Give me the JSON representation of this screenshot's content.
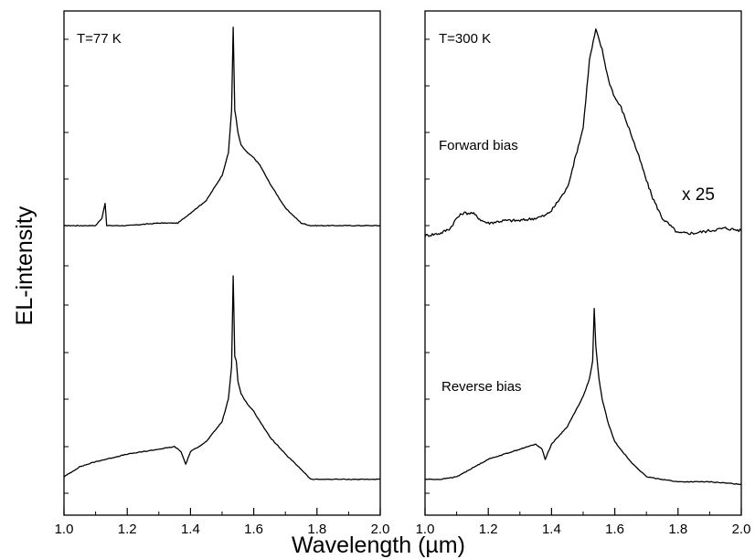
{
  "chart_data": {
    "type": "line",
    "xlabel": "Wavelength (µm)",
    "ylabel": "EL-intensity",
    "xlim": [
      1.0,
      2.0
    ],
    "x_ticks": [
      "1.0",
      "1.2",
      "1.4",
      "1.6",
      "1.8",
      "2.0"
    ],
    "grid": false,
    "panels": [
      {
        "label": "T=77 K",
        "annotations": [],
        "series": [
          {
            "name": "",
            "x": [
              1.0,
              1.05,
              1.1,
              1.12,
              1.13,
              1.135,
              1.15,
              1.2,
              1.3,
              1.36,
              1.38,
              1.4,
              1.45,
              1.5,
              1.52,
              1.53,
              1.535,
              1.54,
              1.545,
              1.55,
              1.56,
              1.58,
              1.6,
              1.62,
              1.65,
              1.7,
              1.75,
              1.78,
              1.85,
              1.9,
              2.0
            ],
            "y": [
              0.16,
              0.16,
              0.16,
              0.19,
              0.25,
              0.16,
              0.16,
              0.16,
              0.17,
              0.17,
              0.19,
              0.21,
              0.26,
              0.36,
              0.45,
              0.62,
              0.95,
              0.62,
              0.58,
              0.53,
              0.48,
              0.45,
              0.43,
              0.4,
              0.33,
              0.23,
              0.17,
              0.16,
              0.16,
              0.16,
              0.16
            ]
          },
          {
            "name": "",
            "x": [
              1.0,
              1.05,
              1.1,
              1.2,
              1.3,
              1.35,
              1.37,
              1.385,
              1.4,
              1.45,
              1.5,
              1.52,
              1.53,
              1.535,
              1.54,
              1.545,
              1.55,
              1.56,
              1.58,
              1.6,
              1.62,
              1.65,
              1.7,
              1.75,
              1.78,
              1.85,
              1.9,
              2.0
            ],
            "y": [
              -0.84,
              -0.8,
              -0.78,
              -0.75,
              -0.73,
              -0.72,
              -0.74,
              -0.79,
              -0.74,
              -0.7,
              -0.62,
              -0.53,
              -0.4,
              -0.04,
              -0.36,
              -0.38,
              -0.46,
              -0.51,
              -0.55,
              -0.58,
              -0.62,
              -0.68,
              -0.75,
              -0.81,
              -0.85,
              -0.85,
              -0.85,
              -0.85
            ]
          }
        ]
      },
      {
        "label": "T=300 K",
        "annotations": [
          "Forward bias",
          "x 25",
          "Reverse bias"
        ],
        "series": [
          {
            "name": "Forward bias",
            "x": [
              1.0,
              1.05,
              1.08,
              1.1,
              1.12,
              1.15,
              1.18,
              1.2,
              1.25,
              1.3,
              1.35,
              1.38,
              1.4,
              1.45,
              1.5,
              1.52,
              1.54,
              1.56,
              1.58,
              1.6,
              1.62,
              1.65,
              1.68,
              1.7,
              1.72,
              1.75,
              1.8,
              1.85,
              1.9,
              1.95,
              2.0
            ],
            "y": [
              0.12,
              0.13,
              0.15,
              0.19,
              0.21,
              0.21,
              0.18,
              0.17,
              0.18,
              0.18,
              0.19,
              0.2,
              0.22,
              0.31,
              0.55,
              0.82,
              0.94,
              0.86,
              0.74,
              0.67,
              0.63,
              0.53,
              0.42,
              0.34,
              0.27,
              0.19,
              0.13,
              0.13,
              0.14,
              0.15,
              0.14
            ]
          },
          {
            "name": "Reverse bias",
            "x": [
              1.0,
              1.05,
              1.1,
              1.2,
              1.3,
              1.35,
              1.37,
              1.38,
              1.39,
              1.4,
              1.45,
              1.5,
              1.52,
              1.53,
              1.535,
              1.54,
              1.55,
              1.56,
              1.58,
              1.6,
              1.65,
              1.7,
              1.75,
              1.8,
              1.85,
              1.9,
              2.0
            ],
            "y": [
              -0.85,
              -0.85,
              -0.84,
              -0.77,
              -0.73,
              -0.71,
              -0.73,
              -0.77,
              -0.74,
              -0.71,
              -0.64,
              -0.52,
              -0.45,
              -0.38,
              -0.17,
              -0.32,
              -0.45,
              -0.53,
              -0.63,
              -0.7,
              -0.78,
              -0.84,
              -0.85,
              -0.86,
              -0.86,
              -0.86,
              -0.87
            ]
          }
        ]
      }
    ]
  }
}
